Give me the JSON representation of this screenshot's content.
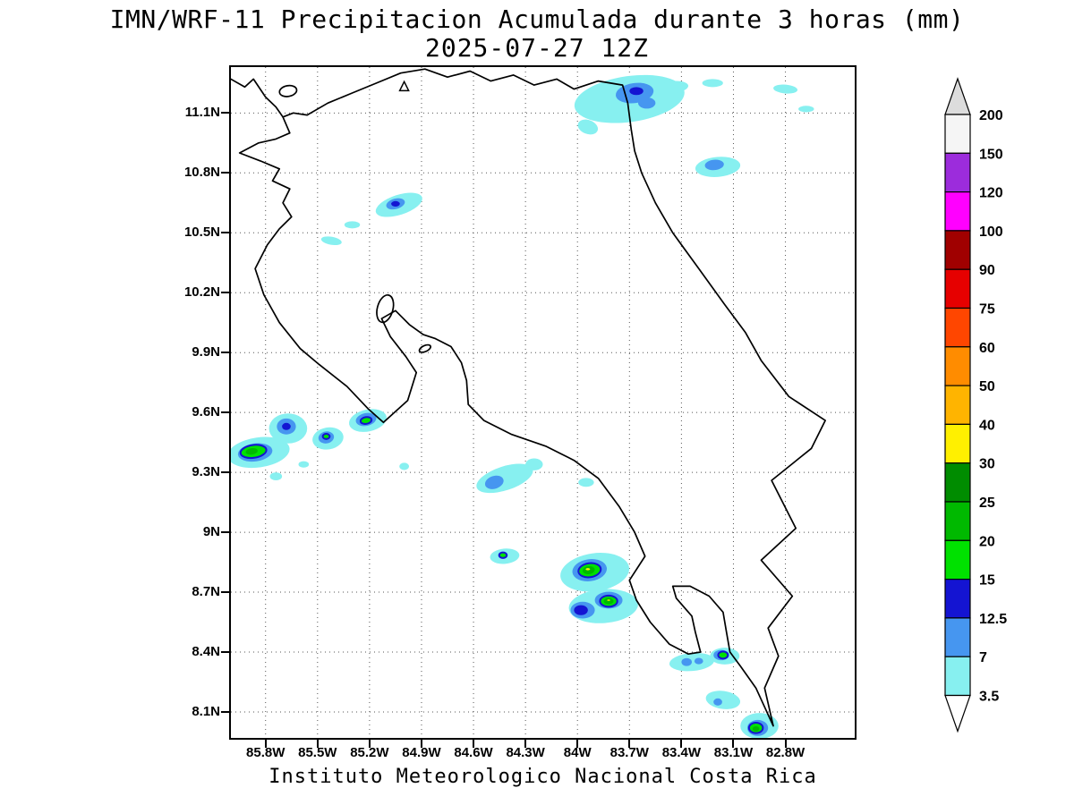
{
  "title": {
    "line1": "IMN/WRF-11 Precipitacion Acumulada durante 3 horas (mm)",
    "line2": "2025-07-27 12Z"
  },
  "caption": "Instituto Meteorologico Nacional Costa Rica",
  "axes": {
    "lat_ticks": [
      {
        "label": "11.1N",
        "value": 11.1
      },
      {
        "label": "10.8N",
        "value": 10.8
      },
      {
        "label": "10.5N",
        "value": 10.5
      },
      {
        "label": "10.2N",
        "value": 10.2
      },
      {
        "label": "9.9N",
        "value": 9.9
      },
      {
        "label": "9.6N",
        "value": 9.6
      },
      {
        "label": "9.3N",
        "value": 9.3
      },
      {
        "label": "9N",
        "value": 9.0
      },
      {
        "label": "8.7N",
        "value": 8.7
      },
      {
        "label": "8.4N",
        "value": 8.4
      },
      {
        "label": "8.1N",
        "value": 8.1
      }
    ],
    "lon_ticks": [
      {
        "label": "85.8W",
        "value": -85.8
      },
      {
        "label": "85.5W",
        "value": -85.5
      },
      {
        "label": "85.2W",
        "value": -85.2
      },
      {
        "label": "84.9W",
        "value": -84.9
      },
      {
        "label": "84.6W",
        "value": -84.6
      },
      {
        "label": "84.3W",
        "value": -84.3
      },
      {
        "label": "84W",
        "value": -84.0
      },
      {
        "label": "83.7W",
        "value": -83.7
      },
      {
        "label": "83.4W",
        "value": -83.4
      },
      {
        "label": "83.1W",
        "value": -83.1
      },
      {
        "label": "82.8W",
        "value": -82.8
      }
    ]
  },
  "colorbar": {
    "levels": [
      "200",
      "150",
      "120",
      "100",
      "90",
      "75",
      "60",
      "50",
      "40",
      "30",
      "25",
      "20",
      "15",
      "12.5",
      "7",
      "3.5"
    ],
    "band_colors": [
      "#F5F5F5",
      "#9C2CDC",
      "#FF00FF",
      "#A00000",
      "#E60000",
      "#FF4600",
      "#FF8C00",
      "#FFB400",
      "#FFF000",
      "#008C00",
      "#00B900",
      "#00E100",
      "#1414D2",
      "#4696F0",
      "#87F0F0"
    ],
    "above_color": "#DCDCDC",
    "below_color": "#FFFFFF",
    "palette": {
      "3.5": "#87F0F0",
      "7": "#4696F0",
      "12.5": "#1414D2",
      "15": "#00E100",
      "20": "#00B900",
      "25": "#008C00",
      "30": "#FFF000"
    }
  },
  "map": {
    "units": "mm",
    "extent": {
      "lon_min": -86.0,
      "lon_max": -82.4,
      "lat_min": 7.97,
      "lat_max": 11.33
    },
    "rings": {
      "15": "12.5",
      "30": "20"
    },
    "marker": {
      "lon": -85.0,
      "lat": 11.23
    },
    "islands": [
      {
        "lon": -85.67,
        "lat": 11.21,
        "rx": 0.05,
        "ry": 0.027,
        "rot": -10
      },
      {
        "lon": -85.11,
        "lat": 10.12,
        "rx": 0.045,
        "ry": 0.07,
        "rot": 15
      },
      {
        "lon": -84.88,
        "lat": 9.92,
        "rx": 0.035,
        "ry": 0.015,
        "rot": -25
      }
    ],
    "coastlines": [
      {
        "name": "costa-rica-outline",
        "points": [
          [
            -85.7,
            11.08
          ],
          [
            -85.66,
            11.0
          ],
          [
            -85.74,
            10.97
          ],
          [
            -85.84,
            10.95
          ],
          [
            -85.95,
            10.9
          ],
          [
            -85.83,
            10.86
          ],
          [
            -85.72,
            10.82
          ],
          [
            -85.76,
            10.76
          ],
          [
            -85.66,
            10.72
          ],
          [
            -85.7,
            10.65
          ],
          [
            -85.65,
            10.58
          ],
          [
            -85.72,
            10.52
          ],
          [
            -85.79,
            10.44
          ],
          [
            -85.86,
            10.32
          ],
          [
            -85.81,
            10.19
          ],
          [
            -85.72,
            10.05
          ],
          [
            -85.6,
            9.92
          ],
          [
            -85.49,
            9.84
          ],
          [
            -85.33,
            9.73
          ],
          [
            -85.21,
            9.62
          ],
          [
            -85.12,
            9.55
          ],
          [
            -84.98,
            9.66
          ],
          [
            -84.93,
            9.8
          ],
          [
            -84.99,
            9.88
          ],
          [
            -85.08,
            9.98
          ],
          [
            -85.13,
            10.07
          ],
          [
            -85.05,
            10.11
          ],
          [
            -84.97,
            10.04
          ],
          [
            -84.89,
            9.99
          ],
          [
            -84.82,
            9.97
          ],
          [
            -84.73,
            9.93
          ],
          [
            -84.67,
            9.85
          ],
          [
            -84.64,
            9.76
          ],
          [
            -84.63,
            9.64
          ],
          [
            -84.54,
            9.56
          ],
          [
            -84.38,
            9.49
          ],
          [
            -84.18,
            9.43
          ],
          [
            -84.02,
            9.36
          ],
          [
            -83.88,
            9.27
          ],
          [
            -83.76,
            9.13
          ],
          [
            -83.67,
            9.0
          ],
          [
            -83.61,
            8.88
          ],
          [
            -83.7,
            8.76
          ],
          [
            -83.66,
            8.66
          ],
          [
            -83.58,
            8.55
          ],
          [
            -83.47,
            8.44
          ],
          [
            -83.36,
            8.39
          ],
          [
            -83.29,
            8.4
          ],
          [
            -83.32,
            8.5
          ],
          [
            -83.34,
            8.58
          ],
          [
            -83.43,
            8.67
          ],
          [
            -83.45,
            8.73
          ],
          [
            -83.35,
            8.73
          ],
          [
            -83.24,
            8.68
          ],
          [
            -83.16,
            8.6
          ],
          [
            -83.14,
            8.5
          ],
          [
            -83.12,
            8.4
          ],
          [
            -83.06,
            8.33
          ],
          [
            -82.97,
            8.22
          ],
          [
            -82.87,
            8.03
          ],
          [
            -82.92,
            8.22
          ],
          [
            -82.84,
            8.38
          ],
          [
            -82.9,
            8.52
          ],
          [
            -82.76,
            8.68
          ],
          [
            -82.94,
            8.86
          ],
          [
            -82.74,
            9.02
          ],
          [
            -82.88,
            9.26
          ],
          [
            -82.65,
            9.42
          ],
          [
            -82.57,
            9.56
          ],
          [
            -82.78,
            9.68
          ],
          [
            -82.94,
            9.86
          ],
          [
            -83.03,
            10.0
          ],
          [
            -83.15,
            10.14
          ],
          [
            -83.3,
            10.32
          ],
          [
            -83.45,
            10.5
          ],
          [
            -83.55,
            10.65
          ],
          [
            -83.63,
            10.8
          ],
          [
            -83.67,
            10.91
          ],
          [
            -83.69,
            11.02
          ],
          [
            -83.71,
            11.15
          ],
          [
            -83.74,
            11.24
          ],
          [
            -83.88,
            11.26
          ],
          [
            -84.02,
            11.22
          ],
          [
            -84.12,
            11.27
          ],
          [
            -84.25,
            11.24
          ],
          [
            -84.37,
            11.29
          ],
          [
            -84.5,
            11.26
          ],
          [
            -84.62,
            11.31
          ],
          [
            -84.75,
            11.28
          ],
          [
            -84.88,
            11.32
          ],
          [
            -85.02,
            11.3
          ],
          [
            -85.16,
            11.25
          ],
          [
            -85.3,
            11.2
          ],
          [
            -85.44,
            11.15
          ],
          [
            -85.56,
            11.09
          ],
          [
            -85.64,
            11.1
          ],
          [
            -85.7,
            11.08
          ]
        ]
      },
      {
        "name": "nicaragua-pacific-coast",
        "points": [
          [
            -86.02,
            11.28
          ],
          [
            -85.92,
            11.23
          ],
          [
            -85.87,
            11.27
          ],
          [
            -85.8,
            11.18
          ],
          [
            -85.74,
            11.13
          ],
          [
            -85.7,
            11.08
          ]
        ]
      }
    ],
    "cell_fields": [
      "level_mm",
      "lon",
      "lat",
      "rx_deg",
      "ry_deg",
      "rotation_deg"
    ],
    "cells": [
      [
        "3.5",
        -83.7,
        11.17,
        0.32,
        0.115,
        -8
      ],
      [
        "3.5",
        -83.94,
        11.03,
        0.06,
        0.035,
        20
      ],
      [
        "3.5",
        -83.45,
        11.23,
        0.09,
        0.03,
        -5
      ],
      [
        "3.5",
        -83.22,
        11.25,
        0.06,
        0.02,
        0
      ],
      [
        "3.5",
        -82.8,
        11.22,
        0.07,
        0.022,
        5
      ],
      [
        "3.5",
        -82.68,
        11.12,
        0.045,
        0.016,
        0
      ],
      [
        "3.5",
        -83.19,
        10.83,
        0.13,
        0.05,
        -5
      ],
      [
        "3.5",
        -85.03,
        10.64,
        0.14,
        0.05,
        -18
      ],
      [
        "3.5",
        -85.3,
        10.54,
        0.045,
        0.018,
        0
      ],
      [
        "3.5",
        -85.42,
        10.46,
        0.06,
        0.02,
        10
      ],
      [
        "3.5",
        -85.84,
        9.4,
        0.18,
        0.075,
        -8
      ],
      [
        "3.5",
        -85.67,
        9.52,
        0.11,
        0.075,
        0
      ],
      [
        "3.5",
        -85.44,
        9.47,
        0.09,
        0.055,
        -10
      ],
      [
        "3.5",
        -85.21,
        9.56,
        0.11,
        0.055,
        -12
      ],
      [
        "3.5",
        -85.74,
        9.28,
        0.035,
        0.02,
        0
      ],
      [
        "3.5",
        -85.58,
        9.34,
        0.03,
        0.016,
        0
      ],
      [
        "3.5",
        -85.0,
        9.33,
        0.028,
        0.018,
        0
      ],
      [
        "3.5",
        -84.42,
        9.27,
        0.17,
        0.06,
        -18
      ],
      [
        "3.5",
        -84.25,
        9.34,
        0.05,
        0.03,
        0
      ],
      [
        "3.5",
        -83.95,
        9.25,
        0.045,
        0.022,
        0
      ],
      [
        "3.5",
        -84.42,
        8.88,
        0.085,
        0.038,
        -5
      ],
      [
        "3.5",
        -83.9,
        8.8,
        0.2,
        0.095,
        -8
      ],
      [
        "3.5",
        -83.85,
        8.63,
        0.2,
        0.085,
        -4
      ],
      [
        "3.5",
        -83.34,
        8.35,
        0.13,
        0.045,
        -5
      ],
      [
        "3.5",
        -83.15,
        8.38,
        0.085,
        0.042,
        0
      ],
      [
        "3.5",
        -83.16,
        8.16,
        0.1,
        0.045,
        8
      ],
      [
        "3.5",
        -82.95,
        8.03,
        0.11,
        0.065,
        0
      ],
      [
        "7",
        -83.67,
        11.2,
        0.11,
        0.05,
        -8
      ],
      [
        "7",
        -83.6,
        11.15,
        0.05,
        0.028,
        0
      ],
      [
        "7",
        -83.21,
        10.84,
        0.055,
        0.026,
        -5
      ],
      [
        "7",
        -85.05,
        10.645,
        0.055,
        0.026,
        -15
      ],
      [
        "7",
        -85.68,
        9.53,
        0.055,
        0.04,
        0
      ],
      [
        "7",
        -85.45,
        9.475,
        0.045,
        0.03,
        -10
      ],
      [
        "7",
        -85.22,
        9.565,
        0.06,
        0.032,
        -12
      ],
      [
        "7",
        -85.86,
        9.4,
        0.1,
        0.045,
        -8
      ],
      [
        "7",
        -84.48,
        9.25,
        0.055,
        0.032,
        -18
      ],
      [
        "7",
        -83.93,
        8.81,
        0.1,
        0.055,
        -8
      ],
      [
        "7",
        -83.97,
        8.61,
        0.07,
        0.042,
        0
      ],
      [
        "7",
        -83.82,
        8.66,
        0.08,
        0.042,
        0
      ],
      [
        "7",
        -83.37,
        8.35,
        0.03,
        0.02,
        0
      ],
      [
        "7",
        -83.3,
        8.355,
        0.025,
        0.016,
        0
      ],
      [
        "7",
        -83.17,
        8.385,
        0.045,
        0.026,
        0
      ],
      [
        "7",
        -83.19,
        8.15,
        0.025,
        0.018,
        0
      ],
      [
        "7",
        -82.96,
        8.02,
        0.06,
        0.04,
        0
      ],
      [
        "12.5",
        -83.66,
        11.21,
        0.04,
        0.02,
        0
      ],
      [
        "12.5",
        -85.05,
        10.645,
        0.025,
        0.014,
        0
      ],
      [
        "12.5",
        -85.68,
        9.53,
        0.025,
        0.018,
        0
      ],
      [
        "12.5",
        -83.98,
        8.61,
        0.04,
        0.025,
        0
      ],
      [
        "15",
        -85.87,
        9.405,
        0.075,
        0.032,
        -8
      ],
      [
        "15",
        -85.45,
        9.48,
        0.02,
        0.013,
        0
      ],
      [
        "15",
        -85.22,
        9.56,
        0.032,
        0.017,
        -10
      ],
      [
        "15",
        -84.43,
        8.885,
        0.022,
        0.014,
        0
      ],
      [
        "15",
        -83.93,
        8.81,
        0.065,
        0.035,
        -8
      ],
      [
        "15",
        -83.82,
        8.655,
        0.05,
        0.028,
        0
      ],
      [
        "15",
        -83.16,
        8.385,
        0.028,
        0.018,
        0
      ],
      [
        "15",
        -82.97,
        8.02,
        0.04,
        0.026,
        0
      ],
      [
        "20",
        -85.88,
        9.405,
        0.035,
        0.016,
        -8
      ],
      [
        "20",
        -83.935,
        8.81,
        0.035,
        0.02,
        -8
      ],
      [
        "20",
        -83.82,
        8.655,
        0.028,
        0.016,
        0
      ],
      [
        "20",
        -82.97,
        8.015,
        0.02,
        0.013,
        0
      ],
      [
        "30",
        -83.94,
        8.815,
        0.018,
        0.01,
        0
      ],
      [
        "30",
        -83.82,
        8.66,
        0.014,
        0.008,
        0
      ]
    ]
  }
}
